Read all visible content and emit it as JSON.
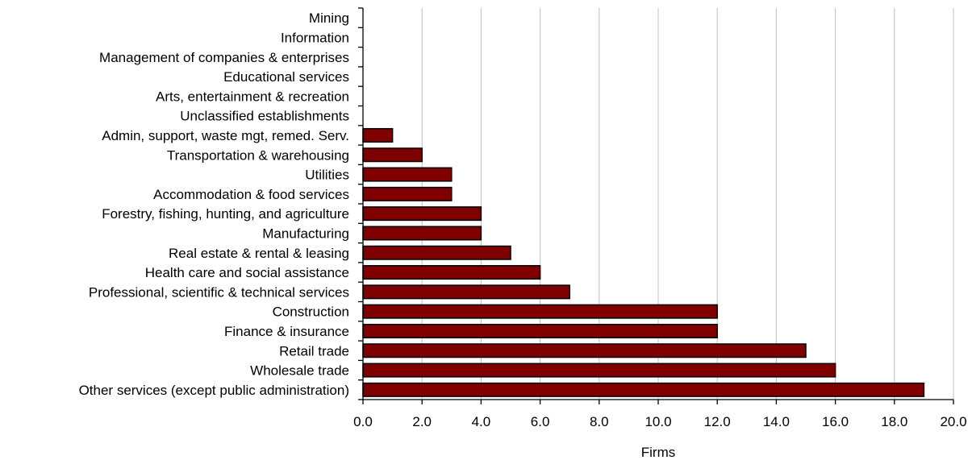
{
  "chart_data": {
    "type": "bar",
    "orientation": "horizontal",
    "categories": [
      "Mining",
      "Information",
      "Management of companies & enterprises",
      "Educational services",
      "Arts, entertainment & recreation",
      "Unclassified establishments",
      "Admin, support, waste mgt, remed. Serv.",
      "Transportation & warehousing",
      "Utilities",
      "Accommodation & food services",
      "Forestry, fishing, hunting, and agriculture",
      "Manufacturing",
      "Real estate & rental & leasing",
      "Health care and social assistance",
      "Professional, scientific & technical services",
      "Construction",
      "Finance & insurance",
      "Retail trade",
      "Wholesale trade",
      "Other services (except public administration)"
    ],
    "values": [
      0,
      0,
      0,
      0,
      0,
      0,
      1,
      2,
      3,
      3,
      4,
      4,
      5,
      6,
      7,
      12,
      12,
      15,
      16,
      19
    ],
    "xlabel": "Firms",
    "ylabel": "",
    "xlim": [
      0,
      20
    ],
    "xticks": [
      0,
      2,
      4,
      6,
      8,
      10,
      12,
      14,
      16,
      18,
      20
    ],
    "xtick_labels": [
      "0.0",
      "2.0",
      "4.0",
      "6.0",
      "8.0",
      "10.0",
      "12.0",
      "14.0",
      "16.0",
      "18.0",
      "20.0"
    ],
    "grid": "vertical",
    "bar_color": "#800000",
    "bar_edge_color": "#000000"
  }
}
